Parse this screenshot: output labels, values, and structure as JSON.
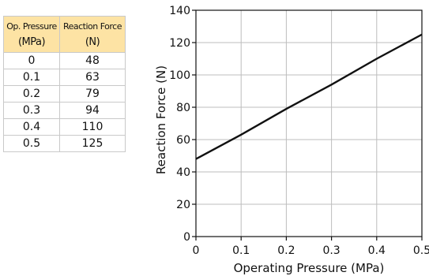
{
  "table": {
    "headers": [
      {
        "line1": "Op. Pressure",
        "line2": "(MPa)"
      },
      {
        "line1": "Reaction Force",
        "line2": "(N)"
      }
    ],
    "rows": [
      [
        "0",
        "48"
      ],
      [
        "0.1",
        "63"
      ],
      [
        "0.2",
        "79"
      ],
      [
        "0.3",
        "94"
      ],
      [
        "0.4",
        "110"
      ],
      [
        "0.5",
        "125"
      ]
    ]
  },
  "chart_data": {
    "type": "line",
    "xlabel": "Operating Pressure (MPa)",
    "ylabel": "Reaction Force (N)",
    "x": [
      0,
      0.1,
      0.2,
      0.3,
      0.4,
      0.5
    ],
    "series": [
      {
        "values": [
          48,
          63,
          79,
          94,
          110,
          125
        ]
      }
    ],
    "xlim": [
      0,
      0.5
    ],
    "ylim": [
      0,
      140
    ],
    "xticks": [
      0,
      0.1,
      0.2,
      0.3,
      0.4,
      0.5
    ],
    "xtick_labels": [
      "0",
      "0.1",
      "0.2",
      "0.3",
      "0.4",
      "0.5"
    ],
    "yticks": [
      0,
      20,
      40,
      60,
      80,
      100,
      120,
      140
    ],
    "ytick_labels": [
      "0",
      "20",
      "40",
      "60",
      "80",
      "100",
      "120",
      "140"
    ],
    "grid": true,
    "line_color": "#111111",
    "grid_color": "#bdbdbd"
  }
}
